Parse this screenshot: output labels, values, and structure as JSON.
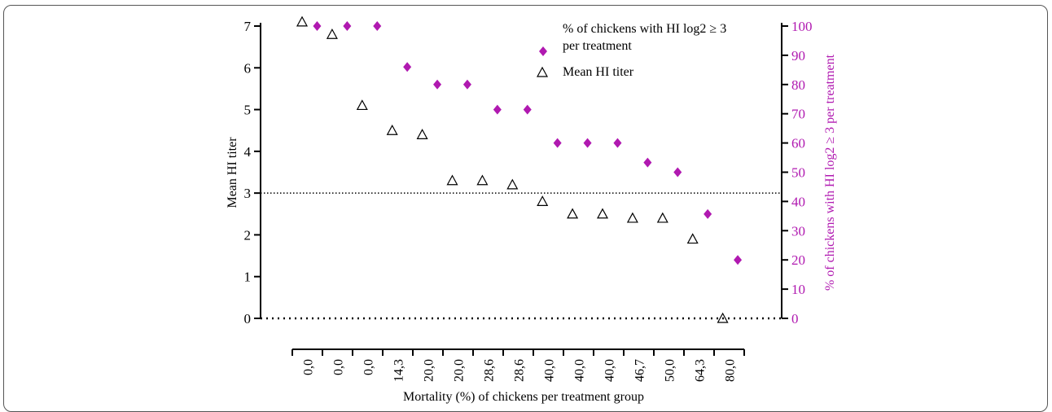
{
  "chart_data": {
    "type": "scatter",
    "xlabel": "Mortality (%) of chickens per treatment group",
    "categories": [
      "0,0",
      "0,0",
      "0,0",
      "14,3",
      "20,0",
      "20,0",
      "28,6",
      "28,6",
      "40,0",
      "40,0",
      "40,0",
      "46,7",
      "50,0",
      "64,3",
      "80,0"
    ],
    "y_left": {
      "label": "Mean HI titer",
      "ylim": [
        0,
        7
      ],
      "ticks": [
        0,
        1,
        2,
        3,
        4,
        5,
        6,
        7
      ]
    },
    "y_right": {
      "label": "% of chickens with HI log2 ≥ 3 per treatment",
      "ylim": [
        0,
        100
      ],
      "ticks": [
        0,
        10,
        20,
        30,
        40,
        50,
        60,
        70,
        80,
        90,
        100
      ]
    },
    "series": [
      {
        "name": "Mean HI titer",
        "axis": "left",
        "marker": "triangle-open",
        "color": "#000000",
        "values": [
          7.1,
          6.8,
          5.1,
          4.5,
          4.4,
          3.3,
          3.3,
          3.2,
          2.8,
          2.5,
          2.5,
          2.4,
          2.4,
          1.9,
          0.0
        ]
      },
      {
        "name": "% of chickens with HI log2 ≥ 3 per treatment",
        "axis": "right",
        "marker": "diamond-filled",
        "color": "#b019b0",
        "values": [
          100,
          100,
          100,
          86,
          80,
          80,
          71.4,
          71.4,
          60,
          60,
          60,
          53.3,
          50,
          35.7,
          20
        ]
      }
    ],
    "reference_lines": [
      {
        "axis": "left",
        "value": 3,
        "style": "dotted"
      },
      {
        "axis": "left",
        "value": 0,
        "style": "dotted"
      }
    ],
    "legend": {
      "placement": "top-right",
      "entries": [
        {
          "label_line1": "% of chickens with HI log2  ≥ 3",
          "label_line2": "per treatment",
          "marker": "diamond-filled",
          "color": "#b019b0"
        },
        {
          "label_line1": "Mean HI titer",
          "label_line2": "",
          "marker": "triangle-open",
          "color": "#000000"
        }
      ]
    },
    "grid": false
  }
}
